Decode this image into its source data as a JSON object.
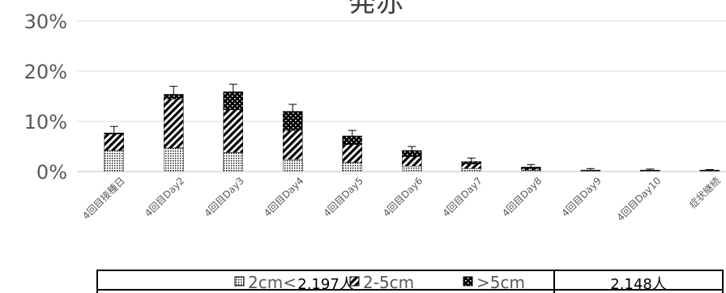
{
  "chart_data": {
    "type": "bar",
    "stacked": true,
    "title": "発赤",
    "ylim": [
      0,
      30
    ],
    "yticks": [
      "0%",
      "10%",
      "20%",
      "30%"
    ],
    "grid": true,
    "categories": [
      "4回目接種日",
      "4回目Day2",
      "4回目Day3",
      "4回目Day4",
      "4回目Day5",
      "4回目Day6",
      "4回目Day7",
      "4回目Day8",
      "4回目Day9",
      "4回目Day10",
      "症状継続"
    ],
    "series": [
      {
        "name": "2cm<",
        "values": [
          4.2,
          4.7,
          3.8,
          2.4,
          1.8,
          1.1,
          0.6,
          0.3,
          0.1,
          0.1,
          0.1
        ]
      },
      {
        "name": "2-5cm",
        "values": [
          3.3,
          9.8,
          8.5,
          5.8,
          3.6,
          1.9,
          0.9,
          0.3,
          0.1,
          0.1,
          0.1
        ]
      },
      {
        "name": ">5cm",
        "values": [
          0.2,
          0.9,
          3.6,
          3.8,
          1.7,
          1.2,
          0.5,
          0.3,
          0.1,
          0.1,
          0.1
        ]
      }
    ],
    "error_bar_top": [
      9.0,
      17.0,
      17.4,
      13.4,
      8.2,
      5.0,
      2.7,
      1.4,
      0.6,
      0.5,
      0.4
    ],
    "n_groups": [
      {
        "label": "2,197人",
        "from": 0,
        "to": 7
      },
      {
        "label": "2,148人",
        "from": 8,
        "to": 10
      }
    ],
    "legend_position": "bottom"
  }
}
